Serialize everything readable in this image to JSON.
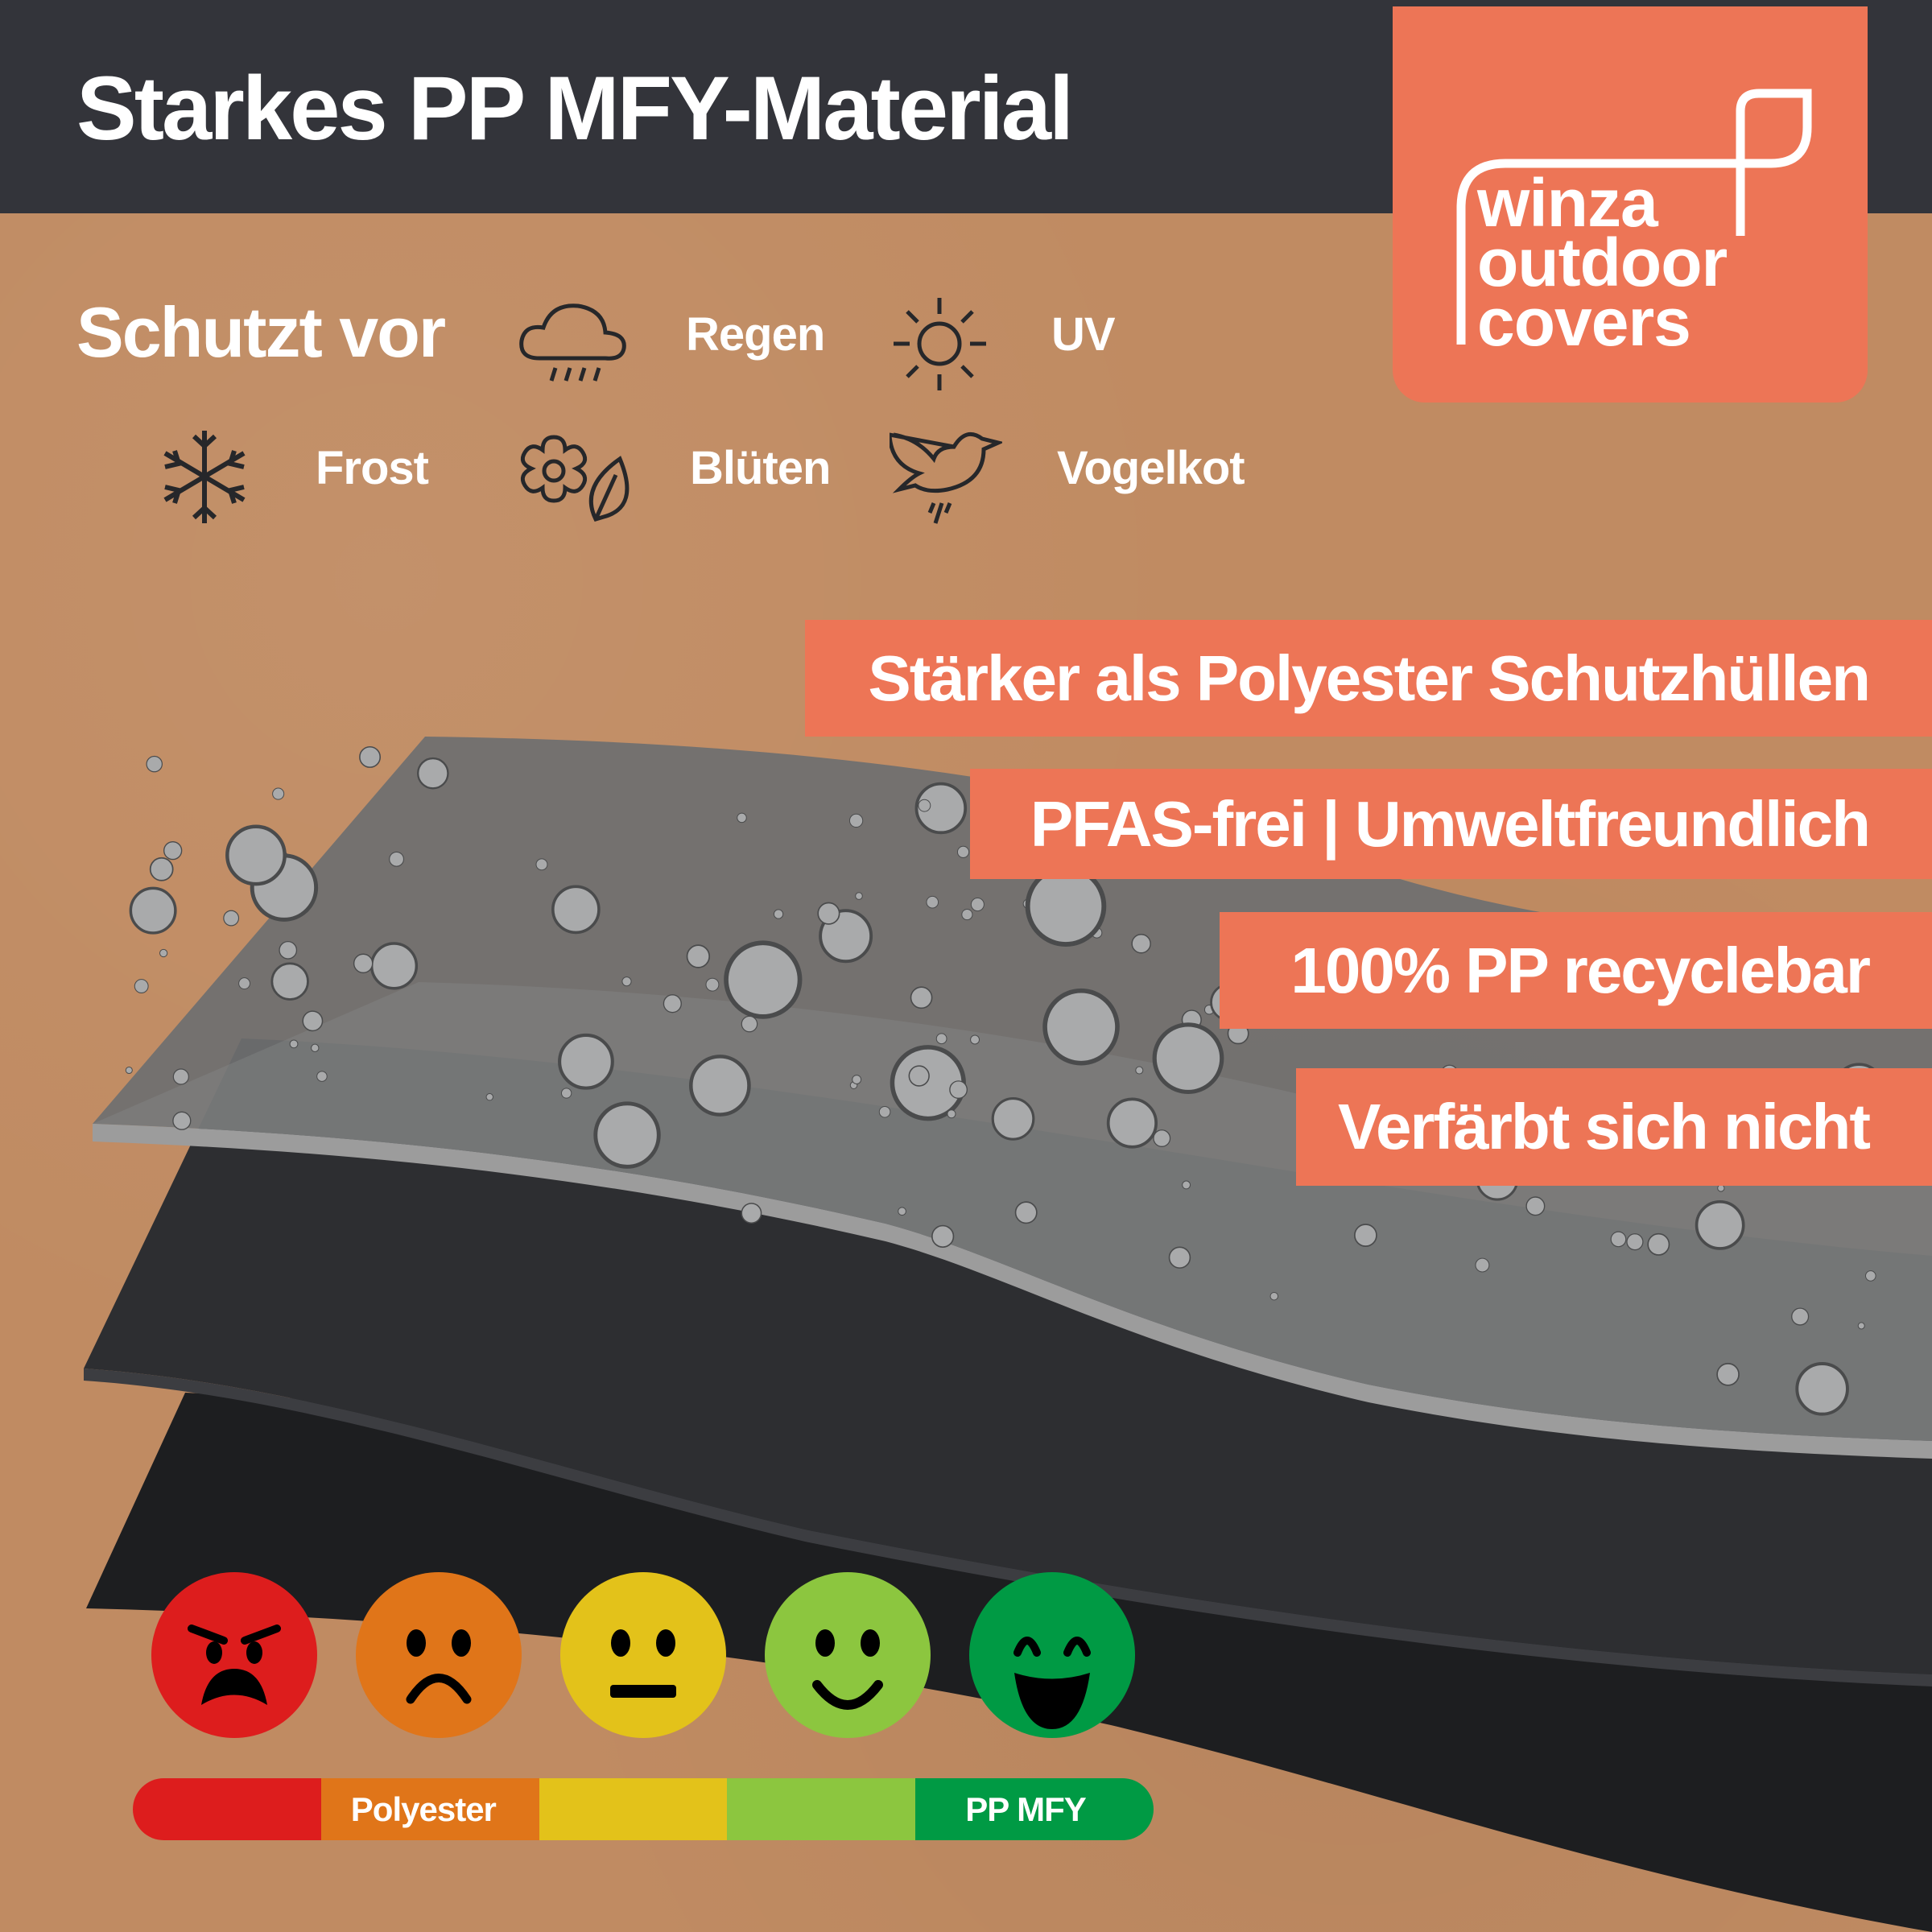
{
  "header": {
    "title": "Starkes PP MFY-Material"
  },
  "logo": {
    "lines": [
      "winza",
      "outdoor",
      "covers"
    ]
  },
  "protection": {
    "label": "Schutzt vor",
    "items": [
      {
        "icon": "cloud-rain-icon",
        "label": "Regen"
      },
      {
        "icon": "sun-icon",
        "label": "UV"
      },
      {
        "icon": "snowflake-icon",
        "label": "Frost"
      },
      {
        "icon": "flower-leaf-icon",
        "label": "Blüten"
      },
      {
        "icon": "bird-icon",
        "label": "Vogelkot"
      }
    ]
  },
  "banners": [
    "Stärker als Polyester Schutzhüllen",
    "PFAS-frei | Umweltfreundlich",
    "100% PP recyclebar",
    "Verfärbt sich nicht"
  ],
  "rating": {
    "faces": [
      {
        "mood": "angry",
        "color": "#dd1d1d"
      },
      {
        "mood": "sad",
        "color": "#e07519"
      },
      {
        "mood": "neutral",
        "color": "#e3c21a"
      },
      {
        "mood": "happy",
        "color": "#8cc63f"
      },
      {
        "mood": "very-happy",
        "color": "#009a44"
      }
    ],
    "scale": [
      {
        "label": "",
        "color": "#dd1d1d"
      },
      {
        "label": "Polyester",
        "color": "#e07519"
      },
      {
        "label": "",
        "color": "#e3c21a"
      },
      {
        "label": "",
        "color": "#8cc63f"
      },
      {
        "label": "PP MFY",
        "color": "#009a44"
      }
    ]
  },
  "colors": {
    "accent": "#ed7556",
    "header": "#33343a",
    "kraft": "#c08b62"
  }
}
